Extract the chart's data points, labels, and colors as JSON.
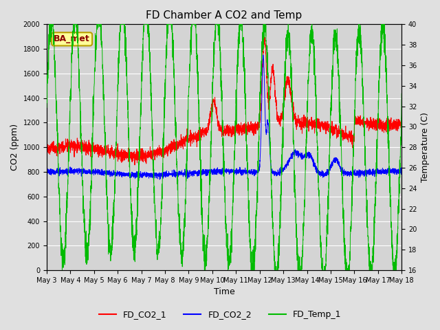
{
  "title": "FD Chamber A CO2 and Temp",
  "xlabel": "Time",
  "ylabel_left": "CO2 (ppm)",
  "ylabel_right": "Temperature (C)",
  "annotation": "BA_met",
  "ylim_left": [
    0,
    2000
  ],
  "ylim_right": [
    16,
    40
  ],
  "x_ticks": [
    "May 3",
    "May 4",
    "May 5",
    "May 6",
    "May 7",
    "May 8",
    "May 9",
    "May 10",
    "May 11",
    "May 12",
    "May 13",
    "May 14",
    "May 15",
    "May 16",
    "May 17",
    "May 18"
  ],
  "legend_labels": [
    "FD_CO2_1",
    "FD_CO2_2",
    "FD_Temp_1"
  ],
  "legend_colors": [
    "#ff0000",
    "#0000ff",
    "#00bb00"
  ],
  "line_colors_co2_1": "#ff0000",
  "line_colors_co2_2": "#0000ff",
  "line_colors_temp": "#00bb00",
  "bg_color": "#e0e0e0",
  "plot_bg_color": "#d4d4d4",
  "grid_color": "#ffffff",
  "annotation_bg": "#ffff99",
  "annotation_border": "#b8a000",
  "annotation_text_color": "#8b0000",
  "font_size_title": 11,
  "font_size_ticks": 7,
  "font_size_labels": 9,
  "font_size_legend": 9,
  "font_size_annotation": 9,
  "linewidth": 0.7
}
